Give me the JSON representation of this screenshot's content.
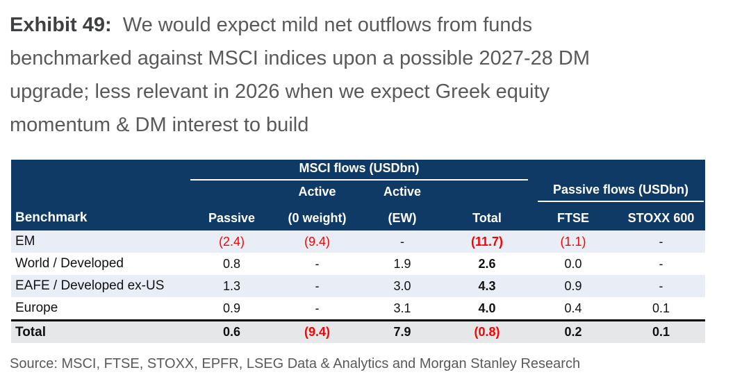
{
  "title": {
    "exhibit_label": "Exhibit 49:",
    "line1_rest": "  We would expect mild net outflows from funds",
    "line2": "benchmarked against MSCI indices upon a possible 2027-28 DM",
    "line3": "upgrade; less relevant in 2026 when we expect Greek equity",
    "line4": "momentum & DM interest to build"
  },
  "table": {
    "group1": "MSCI flows (USDbn)",
    "group2": "Passive flows (USDbn)",
    "active_label": "Active",
    "col_headers": [
      "Benchmark",
      "Passive",
      "(0 weight)",
      "(EW)",
      "Total",
      "FTSE",
      "STOXX 600"
    ],
    "rows": [
      {
        "cells": [
          "EM",
          "(2.4)",
          "(9.4)",
          "-",
          "(11.7)",
          "(1.1)",
          "-"
        ]
      },
      {
        "cells": [
          "World / Developed",
          "0.8",
          "-",
          "1.9",
          "2.6",
          "0.0",
          "-"
        ]
      },
      {
        "cells": [
          "EAFE / Developed ex-US",
          "1.3",
          "-",
          "3.0",
          "4.3",
          "0.9",
          "-"
        ]
      },
      {
        "cells": [
          "Europe",
          "0.9",
          "-",
          "3.1",
          "4.0",
          "0.4",
          "0.1"
        ]
      }
    ],
    "total_row": {
      "cells": [
        "Total",
        "0.6",
        "(9.4)",
        "7.9",
        "(0.8)",
        "0.2",
        "0.1"
      ]
    }
  },
  "source": "Source: MSCI, FTSE, STOXX, EPFR, LSEG Data & Analytics and Morgan Stanley Research",
  "colors": {
    "header_navy": "#0f3a66",
    "negative_red": "#ff0000",
    "row_alt_bg": "#e9edf5",
    "total_row_bg": "#e6e7e8",
    "title_gray": "#58595b",
    "exhibit_label_dark": "#3f4042"
  }
}
